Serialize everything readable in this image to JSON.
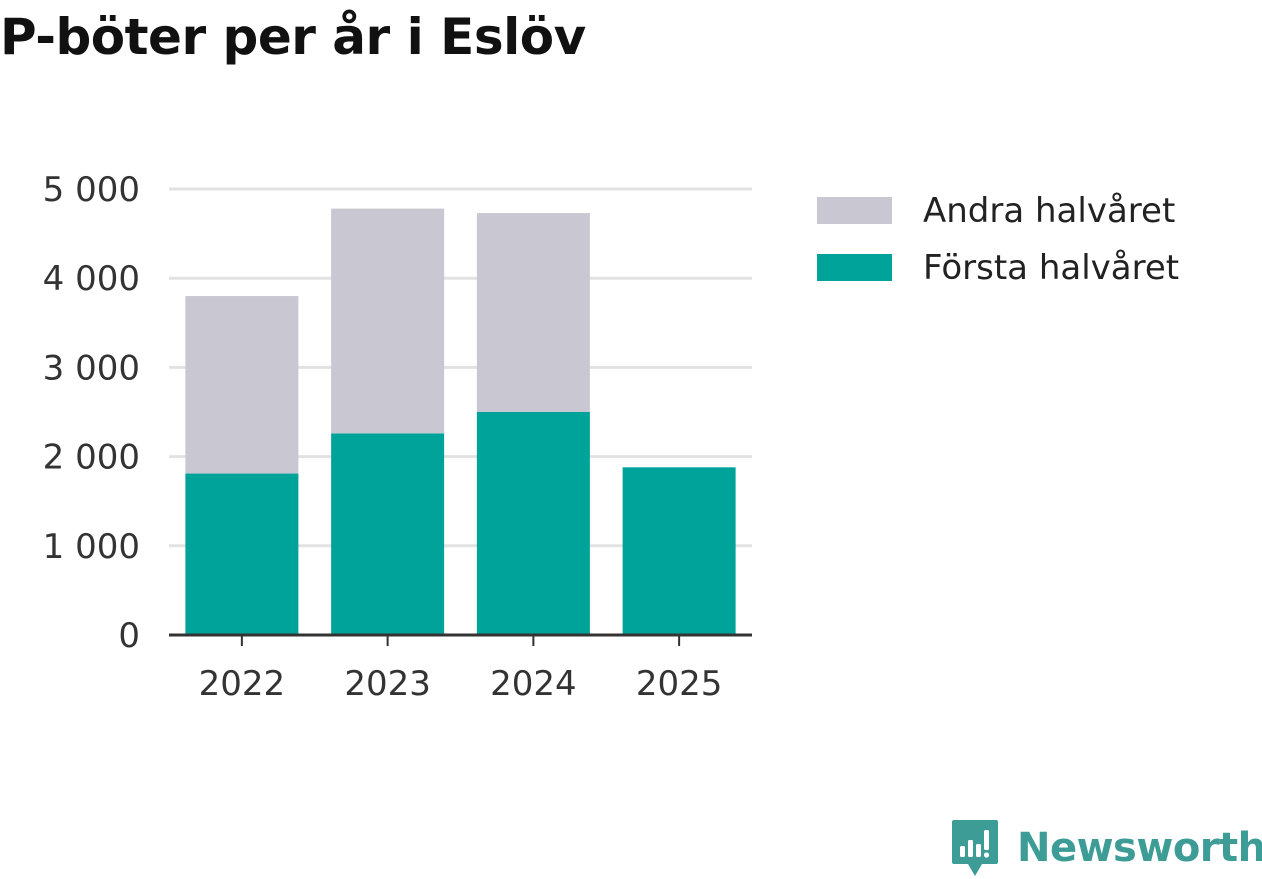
{
  "title": "P-böter per år i Eslöv",
  "colors": {
    "andra": "#c8c7d2",
    "forsta": "#00a39a",
    "grid": "#e2e2e2",
    "axis": "#333333",
    "brand": "#3d9c96"
  },
  "legend": [
    {
      "label": "Andra halvåret",
      "color": "#c8c7d2",
      "icon": "legend-swatch"
    },
    {
      "label": "Första halvåret",
      "color": "#00a39a",
      "icon": "legend-swatch"
    }
  ],
  "chart_data": {
    "type": "bar",
    "stacked": true,
    "title": "P-böter per år i Eslöv",
    "categories": [
      "2022",
      "2023",
      "2024",
      "2025"
    ],
    "series": [
      {
        "name": "Första halvåret",
        "values": [
          1810,
          2260,
          2500,
          1880
        ]
      },
      {
        "name": "Andra halvåret",
        "values": [
          1990,
          2520,
          2230,
          0
        ]
      }
    ],
    "ylim": [
      0,
      5000
    ],
    "yticks": [
      0,
      1000,
      2000,
      3000,
      4000,
      5000
    ],
    "ytick_labels": [
      "0",
      "1 000",
      "2 000",
      "3 000",
      "4 000",
      "5 000"
    ],
    "grid": true,
    "legend_position": "right"
  },
  "brand": {
    "name": "Newsworthy",
    "icon": "newsworthy-logo-icon"
  }
}
